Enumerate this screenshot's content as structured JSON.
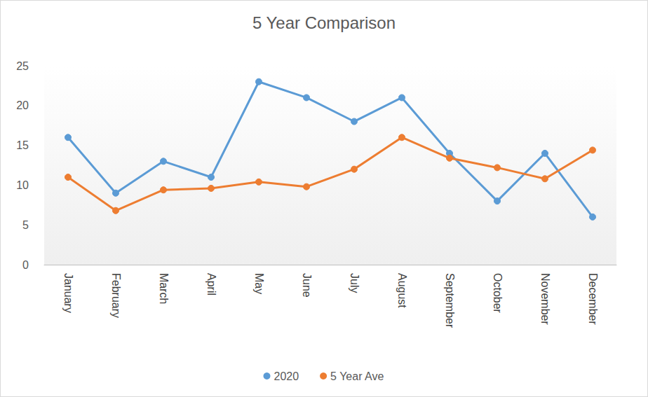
{
  "chart_data": {
    "type": "line",
    "title": "5 Year Comparison",
    "categories": [
      "January",
      "February",
      "March",
      "April",
      "May",
      "June",
      "July",
      "August",
      "September",
      "October",
      "November",
      "December"
    ],
    "series": [
      {
        "name": "2020",
        "color": "#5b9bd5",
        "marker": "circle",
        "values": [
          16,
          9,
          13,
          11,
          23,
          21,
          18,
          21,
          14,
          8,
          14,
          6
        ]
      },
      {
        "name": "5 Year Ave",
        "color": "#ed7d31",
        "marker": "circle",
        "values": [
          11,
          6.8,
          9.4,
          9.6,
          10.4,
          9.8,
          12,
          16,
          13.4,
          12.2,
          10.8,
          14.4
        ]
      }
    ],
    "ylim": [
      0,
      25
    ],
    "yticks": [
      0,
      5,
      10,
      15,
      20,
      25
    ],
    "grid": false,
    "legend": "bottom"
  }
}
